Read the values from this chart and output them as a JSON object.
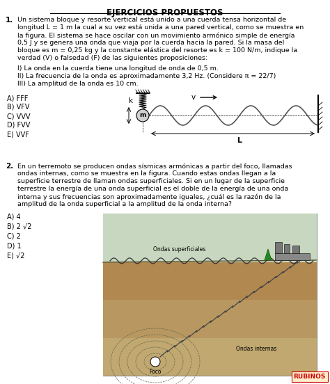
{
  "title": "EJERCICIOS PROPUESTOS",
  "bg_color": "#ffffff",
  "text_color": "#000000",
  "q1_number": "1.",
  "q1_body": "Un sistema bloque y resorte vertical está unido a una cuerda tensa horizontal de\nlongitud L = 1 m la cual a su vez está unida a una pared vertical, como se muestra en\nla figura. El sistema se hace oscilar con un movimiento armónico simple de energía\n0,5 J y se genera una onda que viaja por la cuerda hacia la pared. Si la masa del\nbloque es m = 0,25 kg y la constante elástica del resorte es k = 100 N/m, indique la\nverdad (V) o falsedad (F) de las siguientes proposiciones:",
  "q1_props": "I) La onda en la cuerda tiene una longitud de onda de 0,5 m.\nII) La frecuencia de la onda es aproximadamente 3,2 Hz. (Considere π = 22/7)\nIII) La amplitud de la onda es 10 cm.",
  "q1_opts": [
    "A) FFF",
    "B) VFV",
    "C) VVV",
    "D) FVV",
    "E) VVF"
  ],
  "q2_number": "2.",
  "q2_body": "En un terremoto se producen ondas sísmicas armónicas a partir del foco, llamadas\nondas internas, como se muestra en la figura. Cuando estas ondas llegan a la\nsuperficie terrestre de llaman ondas superficiales. Si en un lugar de la superficie\nterrestre la energía de una onda superficial es el doble de la energía de una onda\ninterna y sus frecuencias son aproximadamente iguales, ¿cuál es la razón de la\namplitud de la onda superficial a la amplitud de la onda interna?",
  "q2_opts": [
    "A) 4",
    "B) 2 √2",
    "C) 2",
    "D) 1",
    "E) √2"
  ],
  "rubinos_color": "#cc0000"
}
